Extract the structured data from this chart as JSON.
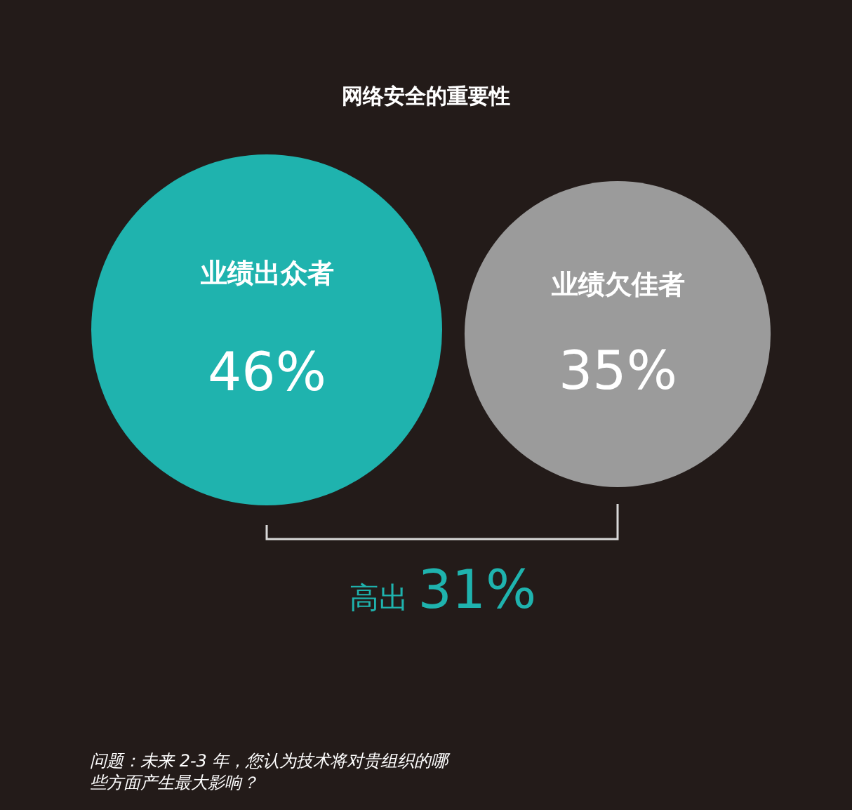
{
  "chart_data": {
    "type": "other",
    "title": "网络安全的重要性",
    "categories": [
      "业绩出众者",
      "业绩欠佳者"
    ],
    "values": [
      46,
      35
    ],
    "colors": [
      "#1fb3ae",
      "#9b9b9b"
    ],
    "value_labels": [
      "46%",
      "35%"
    ],
    "annotations": [
      "高出 31%",
      "问题：未来 2-3 年，您认为技术将对贵组织的哪些方面产生最大影响？"
    ]
  }
}
